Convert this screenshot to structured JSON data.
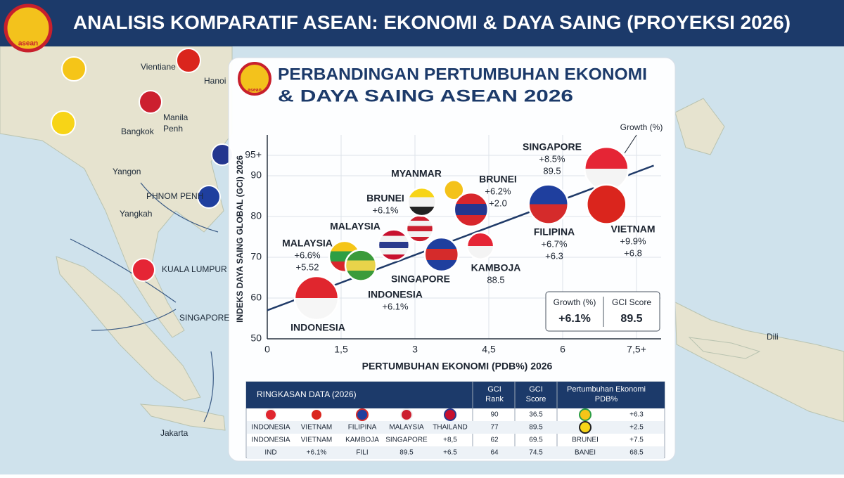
{
  "header": {
    "title": "ANALISIS KOMPARATIF ASEAN: EKONOMI & DAYA SAING (PROYEKSI 2026)",
    "logo_text": "asean"
  },
  "map_labels": [
    "Vientiane",
    "Hanoi",
    "Manila",
    "Penh",
    "Bangkok",
    "Yangon",
    "PHNOM PENH",
    "Yangkah",
    "KUALA LUMPUR",
    "SINGAPORE",
    "Jakarta",
    "Dili"
  ],
  "chart_data": {
    "type": "scatter",
    "title": [
      "PERBANDINGAN PERTUMBUHAN EKONOMI",
      "& DAYA SAING ASEAN 2026"
    ],
    "logo_text": "asean",
    "x_label": "PERTUMBUHAN EKONOMI (PDB%) 2026",
    "y_label": "INDEKS DAYA SAING GLOBAL (GCI) 2026",
    "xlim": [
      0,
      8
    ],
    "ylim": [
      50,
      100
    ],
    "xticks": [
      0,
      {
        "value": 1.5,
        "label": "1,5"
      },
      3,
      {
        "value": 4.5,
        "label": "4,5"
      },
      6,
      {
        "value": 7.5,
        "label": "7,5+"
      }
    ],
    "yticks": [
      50,
      60,
      70,
      80,
      90,
      {
        "value": 95,
        "label": "95+"
      }
    ],
    "grid": true,
    "x": [
      1.0,
      1.57,
      1.9,
      2.57,
      3.1,
      3.14,
      3.54,
      3.79,
      4.14,
      4.33,
      5.71,
      6.89,
      6.89
    ],
    "values": [
      60,
      70.2,
      68,
      73,
      77,
      83.6,
      70.7,
      86.5,
      81.7,
      72.8,
      83,
      91.7,
      83
    ],
    "colors": [
      [
        "#e0262e",
        "#f6f6f6"
      ],
      [
        "#f5c518",
        "#2e9e44",
        "#d9262c"
      ],
      [
        "#3b9b3b",
        "#e9d34a",
        "#3b9b3b"
      ],
      [
        "#c8102e",
        "#f2f2f2",
        "#2a3a8c",
        "#f2f2f2",
        "#c8102e"
      ],
      [
        "#cc1f2f",
        "#f2f2f2",
        "#cc1f2f",
        "#f2f2f2",
        "#cc1f2f"
      ],
      [
        "#f7d417",
        "#f2f2f2",
        "#222222"
      ],
      [
        "#1f3f9e",
        "#d52b2b",
        "#1f3f9e"
      ],
      [
        "#f4c21a"
      ],
      [
        "#d8262c",
        "#24368f",
        "#d8262c"
      ],
      [
        "#e52535",
        "#f4f4f4"
      ],
      [
        "#1f3f9e",
        "#d52b2b"
      ],
      [
        "#e52535",
        "#f4f4f4"
      ],
      [
        "#da251d"
      ]
    ],
    "trend_line": {
      "x": [
        0,
        7.85
      ],
      "values": [
        57,
        92.5
      ],
      "color": "#1f3a68"
    },
    "annotations": [
      [
        "SINGAPORE",
        "+8.5%",
        "89.5"
      ],
      [
        "MYANMAR"
      ],
      [
        "BRUNEI",
        "+6.2%",
        "+2.0"
      ],
      [
        "BRUNEI",
        "+6.1%"
      ],
      [
        "MALAYSIA"
      ],
      [
        "MALAYSIA",
        "+6.6%",
        "+5.52"
      ],
      [
        "FILIPINA",
        "+6.7%",
        "+6.3"
      ],
      [
        "VIETNAM",
        "+9.9%",
        "+6.8"
      ],
      [
        "KAMBOJA",
        "88.5"
      ],
      [
        "SINGAPORE"
      ],
      [
        "INDONESIA",
        "+6.1%"
      ],
      [
        "INDONESIA"
      ]
    ],
    "growth_note": "Growth (%)",
    "legend_box": {
      "growth_label": "Growth (%)",
      "growth": "+6.1%",
      "gci_label": "GCI Score",
      "gci": 89.5
    }
  },
  "table": {
    "title": "RINGKASAN DATA (2026)",
    "headers": [
      [
        "GCI",
        "Rank"
      ],
      [
        "GCI",
        "Score"
      ],
      [
        "Pertumbuhan Ekonomi",
        "PDB%"
      ]
    ],
    "rows": [
      [
        null,
        null,
        null,
        null,
        null,
        90,
        36.5,
        null,
        "+6.3"
      ],
      [
        "INDONESIA",
        "VIETNAM",
        "FILIPINA",
        "MALAYSIA",
        "THAILAND",
        77,
        89.5,
        null,
        "+2.5"
      ],
      [
        "INDONESIA",
        "VIETNAM",
        "KAMBOJA",
        "SINGAPORE",
        "+8,5",
        62,
        69.5,
        "BRUNEI",
        "+7.5"
      ],
      [
        "IND",
        "+6.1%",
        "FILI",
        89.5,
        "+6.5",
        64,
        74.5,
        "BANEI",
        68.5
      ]
    ]
  }
}
